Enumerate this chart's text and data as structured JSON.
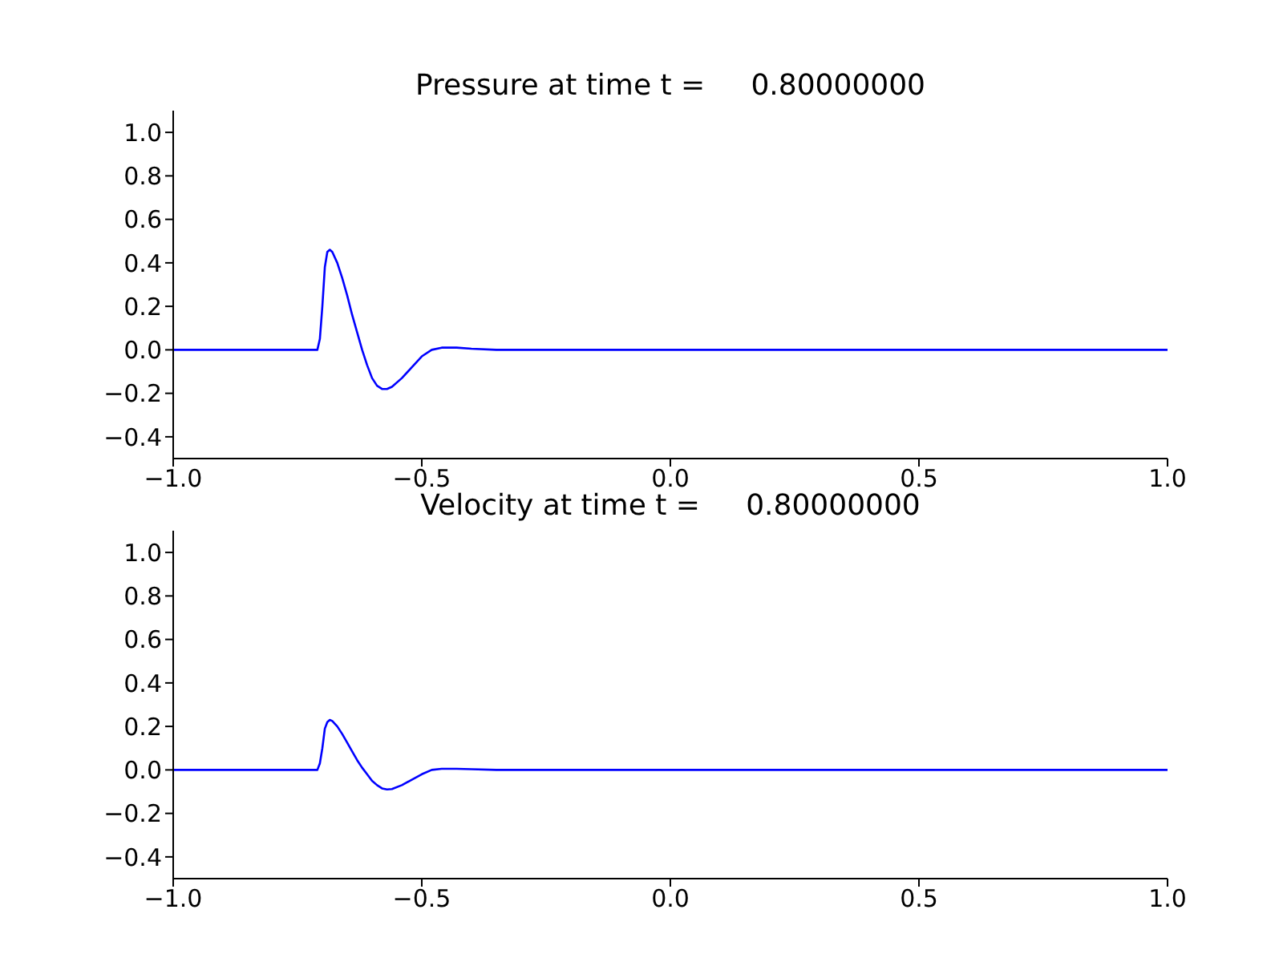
{
  "chart_data": [
    {
      "type": "line",
      "title": "Pressure at time t =     0.80000000",
      "x": [
        -1,
        -0.71,
        -0.705,
        -0.7,
        -0.695,
        -0.69,
        -0.685,
        -0.68,
        -0.67,
        -0.66,
        -0.65,
        -0.64,
        -0.63,
        -0.62,
        -0.61,
        -0.6,
        -0.59,
        -0.58,
        -0.57,
        -0.56,
        -0.54,
        -0.52,
        -0.5,
        -0.48,
        -0.46,
        -0.43,
        -0.4,
        -0.35,
        1
      ],
      "series": [
        {
          "color": "#0000ff",
          "values": [
            0,
            0,
            0.05,
            0.2,
            0.38,
            0.45,
            0.46,
            0.45,
            0.4,
            0.33,
            0.25,
            0.16,
            0.08,
            0,
            -0.07,
            -0.13,
            -0.165,
            -0.18,
            -0.18,
            -0.17,
            -0.13,
            -0.08,
            -0.03,
            0,
            0.01,
            0.01,
            0.005,
            0,
            0
          ]
        }
      ],
      "xlim": [
        -1,
        1
      ],
      "ylim": [
        -0.5,
        1.1
      ],
      "xticks": [
        {
          "value": -1,
          "label": "−1.0"
        },
        {
          "value": -0.5,
          "label": "−0.5"
        },
        {
          "value": 0,
          "label": "0.0"
        },
        {
          "value": 0.5,
          "label": "0.5"
        },
        {
          "value": 1,
          "label": "1.0"
        }
      ],
      "yticks": [
        {
          "value": -0.4,
          "label": "−0.4"
        },
        {
          "value": -0.2,
          "label": "−0.2"
        },
        {
          "value": 0,
          "label": "0.0"
        },
        {
          "value": 0.2,
          "label": "0.2"
        },
        {
          "value": 0.4,
          "label": "0.4"
        },
        {
          "value": 0.6,
          "label": "0.6"
        },
        {
          "value": 0.8,
          "label": "0.8"
        },
        {
          "value": 1,
          "label": "1.0"
        }
      ],
      "grid": false,
      "legend": false,
      "marker": "none",
      "line_style": "solid"
    },
    {
      "type": "line",
      "title": "Velocity at time t =     0.80000000",
      "x": [
        -1,
        -0.71,
        -0.705,
        -0.7,
        -0.695,
        -0.69,
        -0.685,
        -0.68,
        -0.67,
        -0.66,
        -0.65,
        -0.64,
        -0.63,
        -0.62,
        -0.61,
        -0.6,
        -0.59,
        -0.58,
        -0.57,
        -0.56,
        -0.54,
        -0.52,
        -0.5,
        -0.48,
        -0.46,
        -0.43,
        -0.4,
        -0.35,
        1
      ],
      "series": [
        {
          "color": "#0000ff",
          "values": [
            0,
            0,
            0.03,
            0.1,
            0.19,
            0.22,
            0.23,
            0.225,
            0.2,
            0.165,
            0.125,
            0.085,
            0.045,
            0.01,
            -0.02,
            -0.05,
            -0.07,
            -0.085,
            -0.09,
            -0.088,
            -0.07,
            -0.045,
            -0.02,
            0,
            0.005,
            0.005,
            0.003,
            0,
            0
          ]
        }
      ],
      "xlim": [
        -1,
        1
      ],
      "ylim": [
        -0.5,
        1.1
      ],
      "xticks": [
        {
          "value": -1,
          "label": "−1.0"
        },
        {
          "value": -0.5,
          "label": "−0.5"
        },
        {
          "value": 0,
          "label": "0.0"
        },
        {
          "value": 0.5,
          "label": "0.5"
        },
        {
          "value": 1,
          "label": "1.0"
        }
      ],
      "yticks": [
        {
          "value": -0.4,
          "label": "−0.4"
        },
        {
          "value": -0.2,
          "label": "−0.2"
        },
        {
          "value": 0,
          "label": "0.0"
        },
        {
          "value": 0.2,
          "label": "0.2"
        },
        {
          "value": 0.4,
          "label": "0.4"
        },
        {
          "value": 0.6,
          "label": "0.6"
        },
        {
          "value": 0.8,
          "label": "0.8"
        },
        {
          "value": 1,
          "label": "1.0"
        }
      ],
      "grid": false,
      "legend": false,
      "marker": "none",
      "line_style": "solid"
    }
  ]
}
